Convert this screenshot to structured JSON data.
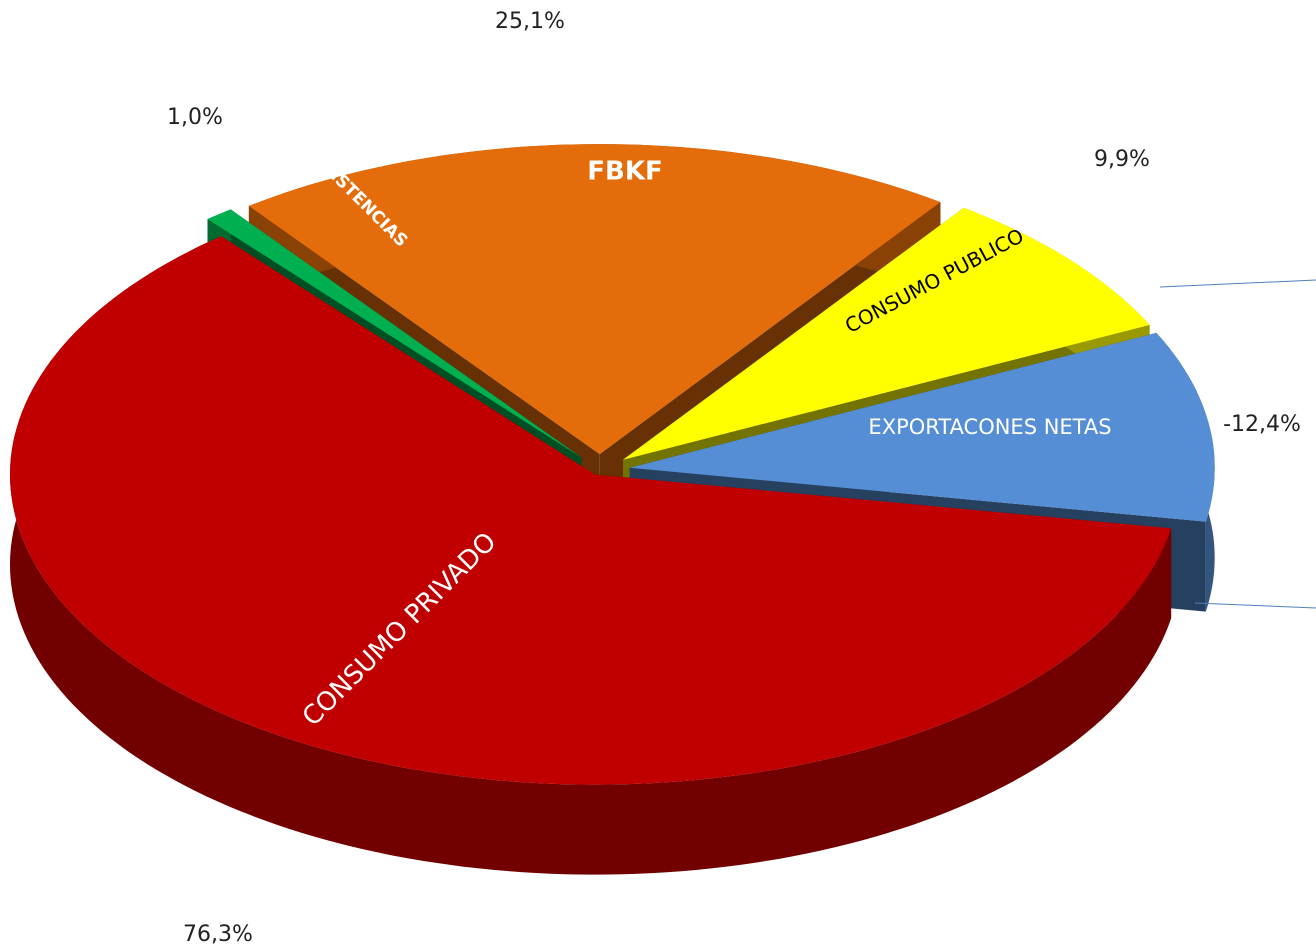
{
  "chart_data": {
    "type": "pie3d",
    "categories": [
      "CONSUMO PRIVADO",
      "EXISTENCIAS",
      "FBKF",
      "CONSUMO PUBLICO",
      "EXPORTACONES NETAS"
    ],
    "values": [
      76.3,
      1.0,
      25.1,
      9.9,
      -12.4
    ],
    "value_labels": [
      "76,3%",
      "1,0%",
      "25,1%",
      "9,9%",
      "-12,4%"
    ],
    "colors": [
      "#c00000",
      "#00b050",
      "#e46c0a",
      "#ffff00",
      "#558ed5"
    ]
  }
}
